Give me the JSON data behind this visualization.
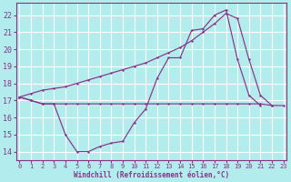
{
  "background_color": "#b3ecec",
  "grid_color": "#ffffff",
  "line_color": "#883388",
  "xlabel": "Windchill (Refroidissement éolien,°C)",
  "xlim": [
    -0.3,
    23.3
  ],
  "ylim": [
    13.5,
    22.7
  ],
  "yticks": [
    14,
    15,
    16,
    17,
    18,
    19,
    20,
    21,
    22
  ],
  "xticks": [
    0,
    1,
    2,
    3,
    4,
    5,
    6,
    7,
    8,
    9,
    10,
    11,
    12,
    13,
    14,
    15,
    16,
    17,
    18,
    19,
    20,
    21,
    22,
    23
  ],
  "curveA_x": [
    0,
    1,
    2,
    3,
    4,
    5,
    6,
    7,
    8,
    9,
    10,
    11,
    12,
    13,
    14,
    15,
    16,
    17,
    18,
    19,
    20,
    21,
    22,
    23
  ],
  "curveA_y": [
    17.2,
    17.0,
    16.8,
    16.8,
    15.0,
    14.0,
    14.0,
    14.3,
    14.5,
    14.6,
    15.7,
    16.5,
    18.3,
    19.5,
    19.5,
    21.1,
    21.2,
    22.0,
    22.3,
    19.4,
    17.3,
    16.7,
    null,
    null
  ],
  "curveB_x": [
    0,
    1,
    2,
    3,
    4,
    5,
    6,
    7,
    8,
    9,
    10,
    11,
    12,
    13,
    14,
    15,
    16,
    17,
    18,
    19,
    20,
    21,
    22,
    23
  ],
  "curveB_y": [
    17.2,
    17.4,
    17.6,
    17.7,
    17.8,
    18.0,
    18.2,
    18.4,
    18.6,
    18.8,
    19.0,
    19.2,
    19.5,
    19.8,
    20.1,
    20.5,
    21.0,
    21.5,
    22.1,
    21.8,
    19.4,
    17.3,
    16.7,
    null
  ],
  "curveC_x": [
    0,
    1,
    2,
    3,
    4,
    5,
    6,
    7,
    8,
    9,
    10,
    11,
    12,
    13,
    14,
    15,
    16,
    17,
    18,
    19,
    20,
    21,
    22,
    23
  ],
  "curveC_y": [
    17.2,
    17.0,
    16.8,
    16.8,
    16.8,
    16.8,
    16.8,
    16.8,
    16.8,
    16.8,
    16.8,
    16.8,
    16.8,
    16.8,
    16.8,
    16.8,
    16.8,
    16.8,
    16.8,
    16.8,
    16.8,
    16.8,
    16.7,
    16.7
  ]
}
